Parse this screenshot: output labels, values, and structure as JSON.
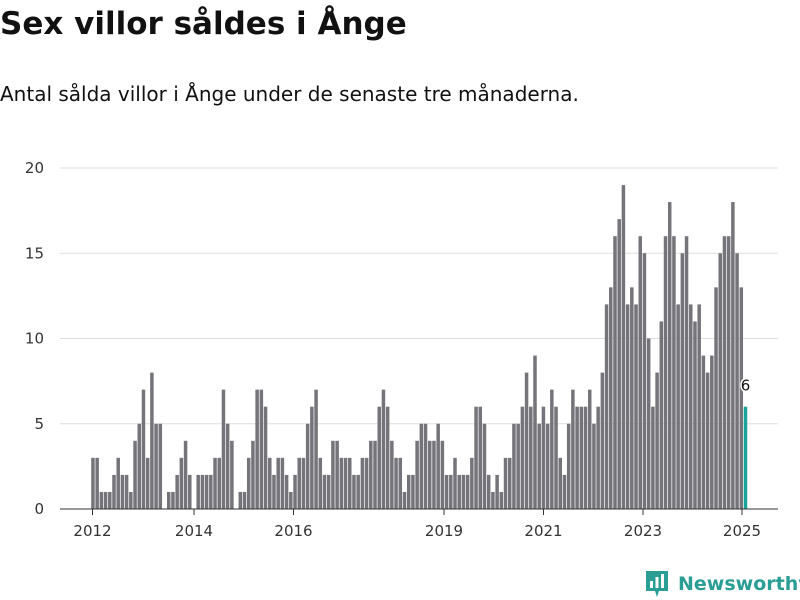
{
  "colors": {
    "bar": "#74747a",
    "highlight": "#1aa39b",
    "grid": "#dddddd",
    "brand": "#2a9d95"
  },
  "logo": {
    "text": "Newsworthy",
    "icon": "newsworthy-bar-chart-icon"
  },
  "chart_data": {
    "type": "bar",
    "title": "Sex villor såldes i Ånge",
    "subtitle": "Antal sålda villor i Ånge under de senaste tre månaderna.",
    "xlabel": "",
    "ylabel": "",
    "ylim": [
      0,
      20
    ],
    "yticks": [
      0,
      5,
      10,
      15,
      20
    ],
    "xtick_labels": [
      "2012",
      "2014",
      "2016",
      "2019",
      "2021",
      "2023",
      "2025"
    ],
    "grid": true,
    "highlight_label": "6",
    "series": [
      {
        "values": [
          3,
          3,
          1,
          1,
          1,
          2,
          3,
          2,
          2,
          1,
          4,
          5,
          7,
          3,
          8,
          5,
          5,
          0,
          1,
          1,
          2,
          3,
          4,
          2,
          0,
          2,
          2,
          2,
          2,
          3,
          3,
          7,
          5,
          4,
          0,
          1,
          1,
          3,
          4,
          7,
          7,
          6,
          3,
          2,
          3,
          3,
          2,
          1,
          2,
          3,
          3,
          5,
          6,
          7,
          3,
          2,
          2,
          4,
          4,
          3,
          3,
          3,
          2,
          2,
          3,
          3,
          4,
          4,
          6,
          7,
          6,
          4,
          3,
          3,
          1,
          2,
          2,
          4,
          5,
          5,
          4,
          4,
          5,
          4,
          2,
          2,
          3,
          2,
          2,
          2,
          3,
          6,
          6,
          5,
          2,
          1,
          2,
          1,
          3,
          3,
          5,
          5,
          6,
          8,
          6,
          9,
          5,
          6,
          5,
          7,
          6,
          3,
          2,
          5,
          7,
          6,
          6,
          6,
          7,
          5,
          6,
          8,
          12,
          13,
          16,
          17,
          19,
          12,
          13,
          12,
          16,
          15,
          10,
          6,
          8,
          11,
          16,
          18,
          16,
          12,
          15,
          16,
          12,
          11,
          12,
          9,
          8,
          9,
          13,
          15,
          16,
          16,
          18,
          15,
          13,
          6
        ]
      }
    ]
  }
}
